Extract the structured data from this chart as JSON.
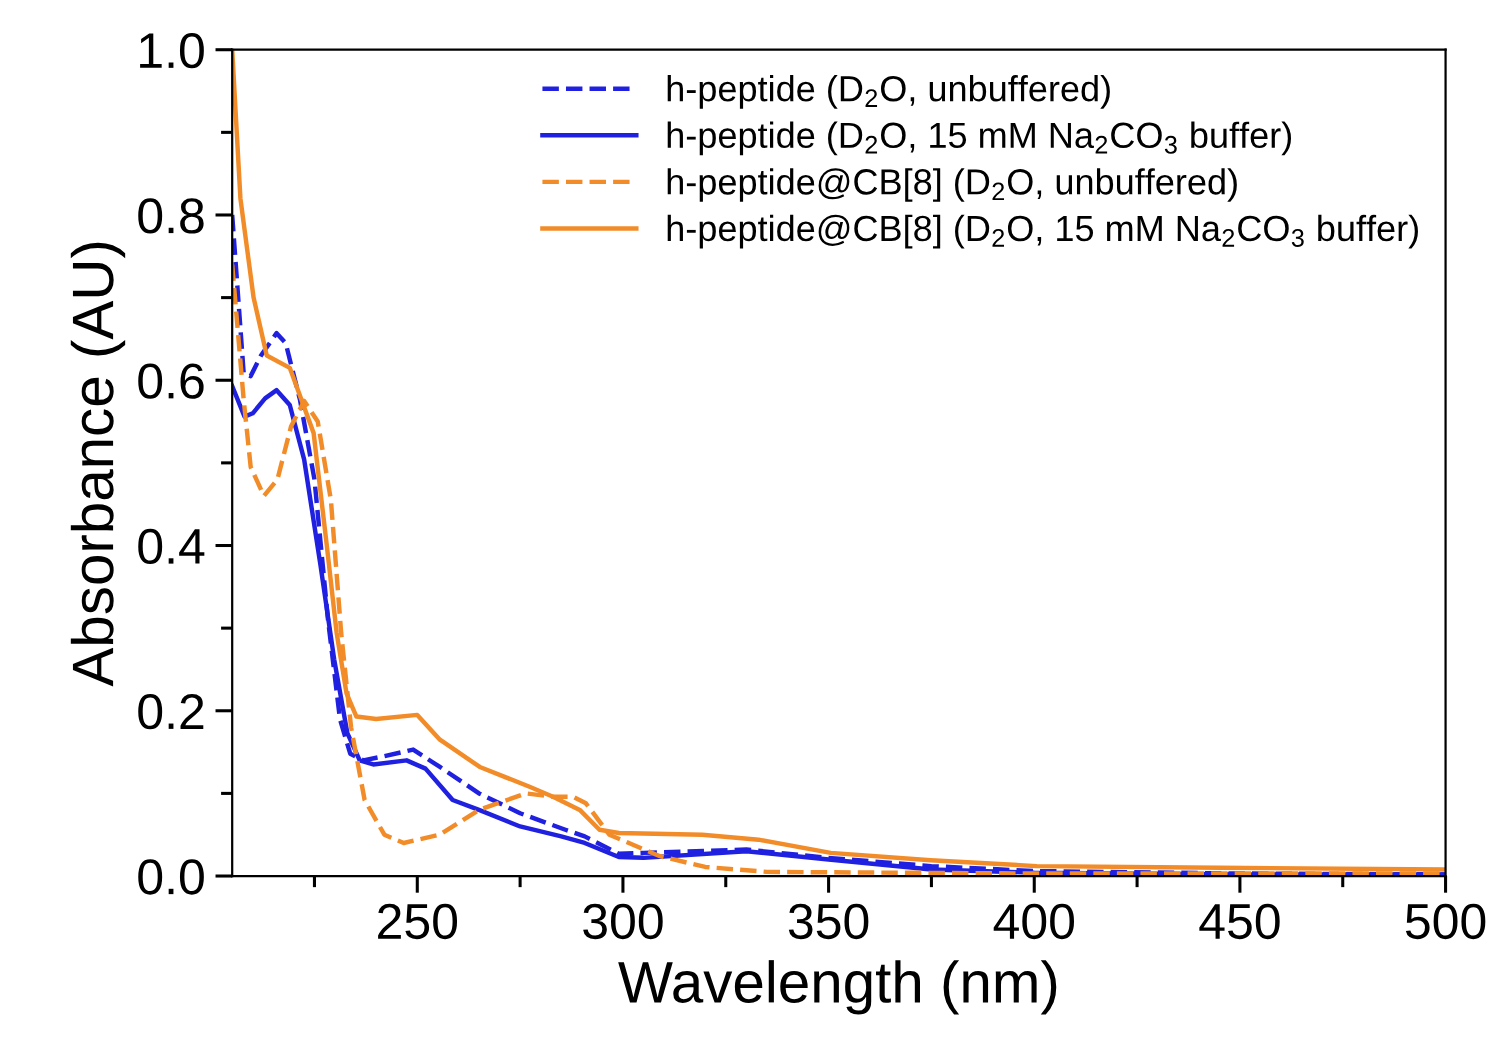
{
  "chart_data": {
    "type": "line",
    "xlabel": "Wavelength (nm)",
    "ylabel": "Absorbance (AU)",
    "xlim": [
      205,
      500
    ],
    "ylim": [
      0,
      1.0
    ],
    "xticks": [
      {
        "value": 225,
        "label": null
      },
      250,
      {
        "value": 275,
        "label": null
      },
      300,
      {
        "value": 325,
        "label": null
      },
      350,
      {
        "value": 375,
        "label": null
      },
      400,
      {
        "value": 425,
        "label": null
      },
      450,
      {
        "value": 475,
        "label": null
      },
      500
    ],
    "yticks": [
      {
        "value": 0,
        "label": "0.0"
      },
      {
        "value": 0.1,
        "label": null
      },
      {
        "value": 0.2,
        "label": "0.2"
      },
      {
        "value": 0.3,
        "label": null
      },
      {
        "value": 0.4,
        "label": "0.4"
      },
      {
        "value": 0.5,
        "label": null
      },
      {
        "value": 0.6,
        "label": "0.6"
      },
      {
        "value": 0.7,
        "label": null
      },
      {
        "value": 0.8,
        "label": "0.8"
      },
      {
        "value": 0.9,
        "label": null
      },
      {
        "value": 1.0,
        "label": "1.0"
      }
    ],
    "legend": "top right",
    "grid": false,
    "marker": "none",
    "series": [
      {
        "name": "h-peptide (D$_{2}$O, unbuffered)",
        "color": "#2020e0",
        "line_style": "dashed",
        "x": [
          205,
          207.8,
          209.5,
          212,
          215.8,
          218,
          221.5,
          225,
          228.3,
          231.2,
          233.7,
          236.9,
          242,
          249,
          255.5,
          265,
          275,
          286,
          290.7,
          299,
          305,
          330,
          350,
          375,
          400,
          450,
          500
        ],
        "values": [
          0.8,
          0.608,
          0.605,
          0.63,
          0.657,
          0.645,
          0.576,
          0.48,
          0.31,
          0.19,
          0.148,
          0.14,
          0.145,
          0.153,
          0.132,
          0.1,
          0.076,
          0.056,
          0.048,
          0.027,
          0.028,
          0.032,
          0.022,
          0.012,
          0.006,
          0.003,
          0.002
        ]
      },
      {
        "name": "h-peptide (D$_{2}$O, 15 mM Na$_{2}$CO$_{3}$ buffer)",
        "color": "#2020e0",
        "line_style": "solid",
        "x": [
          205,
          208,
          210,
          213,
          215.8,
          219,
          222.5,
          226.5,
          229.8,
          233,
          236,
          239.3,
          247.4,
          252,
          258.6,
          265,
          275,
          285,
          290.7,
          299,
          305,
          330,
          350,
          375,
          400,
          450,
          500
        ],
        "values": [
          0.593,
          0.556,
          0.56,
          0.578,
          0.588,
          0.57,
          0.504,
          0.375,
          0.262,
          0.173,
          0.14,
          0.135,
          0.14,
          0.13,
          0.092,
          0.08,
          0.06,
          0.048,
          0.04,
          0.023,
          0.022,
          0.03,
          0.02,
          0.008,
          0.004,
          0.002,
          0.002
        ]
      },
      {
        "name": "h-peptide@CB[8] (D$_{2}$O, unbuffered)",
        "color": "#f28c28",
        "line_style": "dashed",
        "x": [
          205,
          207.8,
          209.5,
          212.7,
          216,
          219.3,
          222.5,
          225.8,
          229,
          231.5,
          233.9,
          237.2,
          242,
          246.7,
          255.4,
          265,
          276.4,
          283,
          287.8,
          291,
          296.7,
          309,
          320,
          335,
          400,
          500
        ],
        "values": [
          0.74,
          0.576,
          0.495,
          0.46,
          0.48,
          0.544,
          0.575,
          0.55,
          0.455,
          0.294,
          0.18,
          0.092,
          0.05,
          0.04,
          0.05,
          0.08,
          0.1,
          0.096,
          0.096,
          0.088,
          0.05,
          0.024,
          0.011,
          0.005,
          0.003,
          0.003
        ]
      },
      {
        "name": "h-peptide@CB[8] (D$_{2}$O, 15 mM Na$_{2}$CO$_{3}$ buffer)",
        "color": "#f28c28",
        "line_style": "solid",
        "x": [
          205,
          207,
          210.2,
          213.4,
          219,
          224.8,
          228,
          230.4,
          232.8,
          235.2,
          240,
          250,
          255.5,
          265.2,
          277.3,
          283,
          289.5,
          294.3,
          299,
          319.3,
          333,
          350.5,
          374.8,
          400.6,
          445,
          500
        ],
        "values": [
          1.0,
          0.82,
          0.7,
          0.63,
          0.615,
          0.536,
          0.4,
          0.294,
          0.221,
          0.193,
          0.19,
          0.195,
          0.165,
          0.132,
          0.108,
          0.096,
          0.08,
          0.056,
          0.052,
          0.05,
          0.044,
          0.028,
          0.019,
          0.012,
          0.01,
          0.008
        ]
      }
    ]
  }
}
